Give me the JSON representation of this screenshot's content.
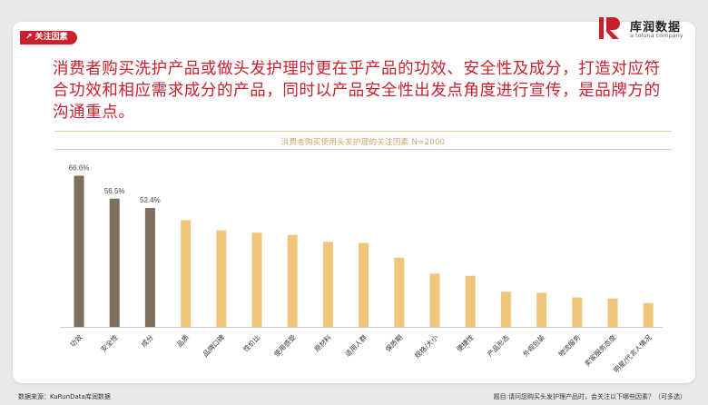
{
  "tag": {
    "label": "关注因素",
    "arrow": "↗"
  },
  "logo": {
    "cn": "库润数据",
    "en": "a toluna company"
  },
  "headline": "消费者购买洗护产品或做头发护理时更在乎产品的功效、安全性及成分，打造对应符合功效和相应需求成分的产品，同时以产品安全性出发点角度进行宣传，是品牌方的沟通重点。",
  "chart_data": {
    "type": "bar",
    "title": "消费者购买使用头发护理的关注因素 N=2000",
    "categories": [
      "功效",
      "安全性",
      "成分",
      "品质",
      "品牌口碑",
      "性价比",
      "使用感受",
      "原材料",
      "适用人群",
      "保质期",
      "规格/大小",
      "便捷性",
      "产品形态",
      "外观包装",
      "物流服务",
      "卖家服务态度",
      "明星/代言人情况"
    ],
    "values": [
      66.6,
      56.5,
      52.4,
      47,
      42.5,
      41.5,
      40.5,
      37.5,
      37,
      30.5,
      23.5,
      22.5,
      15.5,
      15,
      13,
      12.5,
      10.5
    ],
    "labels": [
      "66.6%",
      "56.5%",
      "52.4%"
    ],
    "highlight_count": 3,
    "colors": {
      "highlight": "#7e6e5d",
      "normal": "#f0c57c"
    },
    "ylim": [
      0,
      70
    ]
  },
  "footer": {
    "source": "数据来源：KuRunData库润数据",
    "question": "题目:请问您购买头发护理产品时，会关注以下哪些因素？（可多选）"
  }
}
